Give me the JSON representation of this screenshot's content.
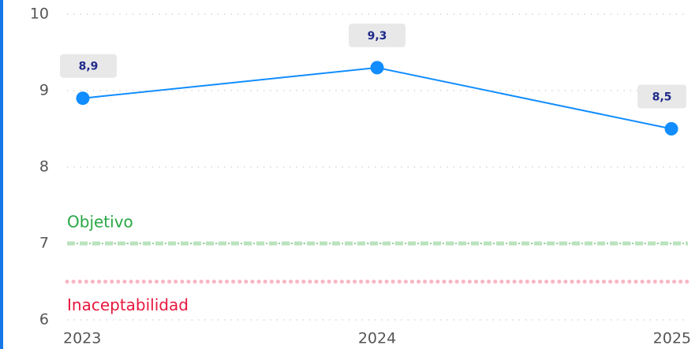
{
  "chart_data": {
    "type": "line",
    "categories": [
      "2023",
      "2024",
      "2025"
    ],
    "series": [
      {
        "color": "#118dff",
        "values": [
          8.9,
          9.3,
          8.5
        ],
        "value_labels": [
          "8,9",
          "9,3",
          "8,5"
        ]
      }
    ],
    "ylim": [
      6,
      10
    ],
    "yticks": [
      6,
      7,
      8,
      9,
      10
    ],
    "grid": true,
    "reference_lines": [
      {
        "label": "Objetivo",
        "value": 7,
        "color": "#28a745",
        "line_color": "#b9e3bd"
      },
      {
        "label": "Inaceptabilidad",
        "value": 6.5,
        "color": "#e8173d",
        "line_color": "#f7b6c4"
      }
    ]
  }
}
